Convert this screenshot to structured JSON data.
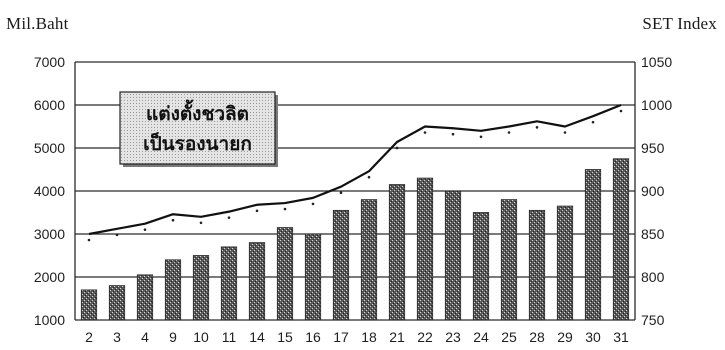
{
  "header": {
    "left_unit": "Mil.Baht",
    "right_unit": "SET Index"
  },
  "chart_data": {
    "type": "bar",
    "title": "",
    "annotation": "แต่งตั้งชวลิต เป็นรองนายก",
    "annotation_lines": [
      "แต่งตั้งชวลิต",
      "เป็นรองนายก"
    ],
    "categories": [
      "2",
      "3",
      "4",
      "9",
      "10",
      "11",
      "14",
      "15",
      "16",
      "17",
      "18",
      "21",
      "22",
      "23",
      "24",
      "25",
      "28",
      "29",
      "30",
      "31"
    ],
    "series": [
      {
        "axis": "left",
        "type": "bar",
        "values": [
          1700,
          1800,
          2050,
          2400,
          2500,
          2700,
          2800,
          3150,
          3000,
          3550,
          3800,
          4150,
          4300,
          4000,
          3500,
          3800,
          3550,
          3650,
          4500,
          4750
        ],
        "color": "#3a3a3a"
      },
      {
        "axis": "right",
        "type": "line",
        "values": [
          850,
          856,
          862,
          873,
          870,
          876,
          884,
          886,
          892,
          905,
          923,
          957,
          975,
          973,
          970,
          975,
          981,
          975,
          987,
          1000
        ],
        "color": "#111111"
      }
    ],
    "y_left": {
      "min": 1000,
      "max": 7000,
      "ticks": [
        1000,
        2000,
        3000,
        4000,
        5000,
        6000,
        7000
      ]
    },
    "y_right": {
      "min": 750,
      "max": 1050,
      "ticks": [
        750,
        800,
        850,
        900,
        950,
        1000,
        1050
      ]
    },
    "grid": true,
    "legend": "none"
  }
}
